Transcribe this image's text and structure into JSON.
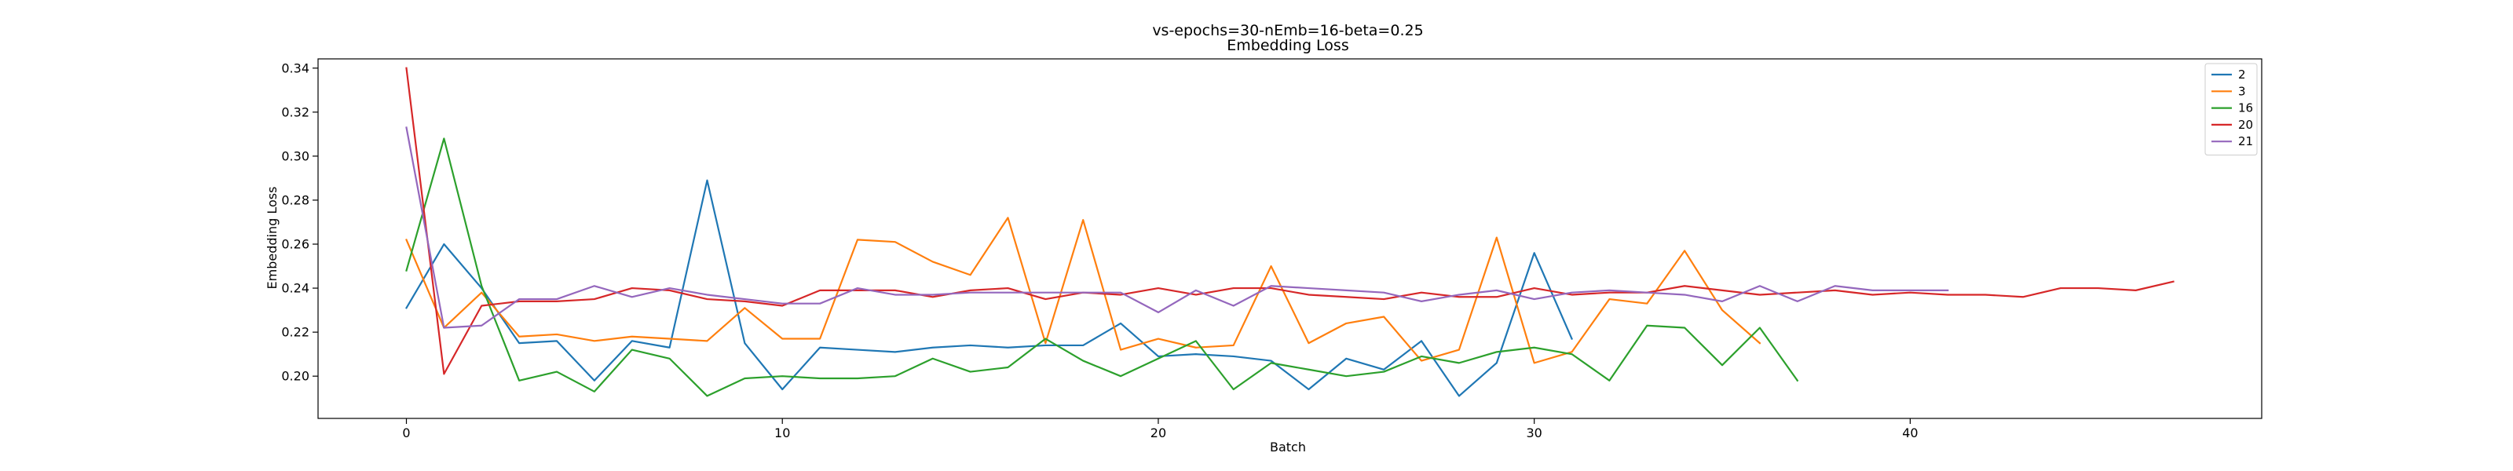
{
  "chart_data": {
    "type": "line",
    "title": "vs-epochs=30-nEmb=16-beta=0.25",
    "subtitle": "Embedding Loss",
    "xlabel": "Batch",
    "ylabel": "Embedding Loss",
    "xlim": [
      -2.35,
      49.35
    ],
    "ylim": [
      0.1808,
      0.3442
    ],
    "xticks": [
      0,
      10,
      20,
      30,
      40
    ],
    "yticks": [
      0.2,
      0.22,
      0.24,
      0.26,
      0.28,
      0.3,
      0.32,
      0.34
    ],
    "ytick_labels": [
      "0.20",
      "0.22",
      "0.24",
      "0.26",
      "0.28",
      "0.30",
      "0.32",
      "0.34"
    ],
    "grid": false,
    "legend_position": "upper right",
    "series": [
      {
        "name": "2",
        "color": "#1f77b4",
        "values": [
          0.231,
          0.26,
          0.24,
          0.215,
          0.216,
          0.198,
          0.216,
          0.213,
          0.289,
          0.215,
          0.194,
          0.213,
          0.212,
          0.211,
          0.213,
          0.214,
          0.213,
          0.214,
          0.214,
          0.224,
          0.209,
          0.21,
          0.209,
          0.207,
          0.194,
          0.208,
          0.203,
          0.216,
          0.191,
          0.206,
          0.256,
          0.217
        ]
      },
      {
        "name": "3",
        "color": "#ff7f0e",
        "values": [
          0.262,
          0.222,
          0.238,
          0.218,
          0.219,
          0.216,
          0.218,
          0.217,
          0.216,
          0.231,
          0.217,
          0.217,
          0.262,
          0.261,
          0.252,
          0.246,
          0.272,
          0.215,
          0.271,
          0.212,
          0.217,
          0.213,
          0.214,
          0.25,
          0.215,
          0.224,
          0.227,
          0.207,
          0.212,
          0.263,
          0.206,
          0.211,
          0.235,
          0.233,
          0.257,
          0.23,
          0.215
        ]
      },
      {
        "name": "16",
        "color": "#2ca02c",
        "values": [
          0.248,
          0.308,
          0.241,
          0.198,
          0.202,
          0.193,
          0.212,
          0.208,
          0.191,
          0.199,
          0.2,
          0.199,
          0.199,
          0.2,
          0.208,
          0.202,
          0.204,
          0.217,
          0.207,
          0.2,
          0.208,
          0.216,
          0.194,
          0.206,
          0.203,
          0.2,
          0.202,
          0.209,
          0.206,
          0.211,
          0.213,
          0.21,
          0.198,
          0.223,
          0.222,
          0.205,
          0.222,
          0.198
        ]
      },
      {
        "name": "20",
        "color": "#d62728",
        "values": [
          0.34,
          0.201,
          0.232,
          0.234,
          0.234,
          0.235,
          0.24,
          0.239,
          0.235,
          0.234,
          0.232,
          0.239,
          0.239,
          0.239,
          0.236,
          0.239,
          0.24,
          0.235,
          0.238,
          0.237,
          0.24,
          0.237,
          0.24,
          0.24,
          0.237,
          0.236,
          0.235,
          0.238,
          0.236,
          0.236,
          0.24,
          0.237,
          0.238,
          0.238,
          0.241,
          0.239,
          0.237,
          0.238,
          0.239,
          0.237,
          0.238,
          0.237,
          0.237,
          0.236,
          0.24,
          0.24,
          0.239,
          0.243
        ]
      },
      {
        "name": "21",
        "color": "#9467bd",
        "values": [
          0.313,
          0.222,
          0.223,
          0.235,
          0.235,
          0.241,
          0.236,
          0.24,
          0.237,
          0.235,
          0.233,
          0.233,
          0.24,
          0.237,
          0.237,
          0.238,
          0.238,
          0.238,
          0.238,
          0.238,
          0.229,
          0.239,
          0.232,
          0.241,
          0.24,
          0.239,
          0.238,
          0.234,
          0.237,
          0.239,
          0.235,
          0.238,
          0.239,
          0.238,
          0.237,
          0.234,
          0.241,
          0.234,
          0.241,
          0.239,
          0.239,
          0.239
        ]
      }
    ]
  }
}
